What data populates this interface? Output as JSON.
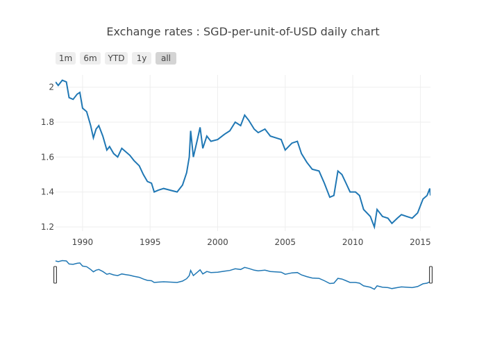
{
  "chart_data": {
    "type": "line",
    "title": "Exchange rates : SGD-per-unit-of-USD daily chart",
    "xlabel": "",
    "ylabel": "",
    "xlim": [
      1988.0,
      2015.75
    ],
    "ylim": [
      1.176,
      2.07
    ],
    "grid": true,
    "x_ticks": [
      "1990",
      "1995",
      "2000",
      "2005",
      "2010",
      "2015"
    ],
    "y_ticks": [
      "1.2",
      "1.4",
      "1.6",
      "1.8",
      "2"
    ],
    "range_buttons": [
      "1m",
      "6m",
      "YTD",
      "1y",
      "all"
    ],
    "active_button": "all",
    "series": [
      {
        "name": "SGD per USD",
        "color": "#1f77b4",
        "x": [
          1988.0,
          1988.2,
          1988.5,
          1988.8,
          1989.0,
          1989.3,
          1989.6,
          1989.8,
          1990.0,
          1990.3,
          1990.6,
          1990.8,
          1991.0,
          1991.2,
          1991.5,
          1991.8,
          1992.0,
          1992.3,
          1992.6,
          1992.9,
          1993.2,
          1993.5,
          1993.8,
          1994.2,
          1994.5,
          1994.8,
          1995.1,
          1995.3,
          1995.6,
          1996.0,
          1996.5,
          1997.0,
          1997.4,
          1997.7,
          1997.9,
          1998.0,
          1998.2,
          1998.5,
          1998.7,
          1998.9,
          1999.2,
          1999.5,
          2000.0,
          2000.5,
          2000.9,
          2001.3,
          2001.7,
          2002.0,
          2002.3,
          2002.7,
          2003.0,
          2003.5,
          2003.9,
          2004.3,
          2004.7,
          2005.0,
          2005.5,
          2005.9,
          2006.2,
          2006.6,
          2007.0,
          2007.5,
          2007.9,
          2008.3,
          2008.6,
          2008.9,
          2009.2,
          2009.5,
          2009.8,
          2010.2,
          2010.5,
          2010.8,
          2011.3,
          2011.6,
          2011.8,
          2012.2,
          2012.6,
          2012.9,
          2013.3,
          2013.6,
          2014.0,
          2014.4,
          2014.8,
          2015.2,
          2015.5,
          2015.7,
          2015.75
        ],
        "y": [
          2.03,
          2.01,
          2.04,
          2.03,
          1.94,
          1.93,
          1.96,
          1.97,
          1.88,
          1.86,
          1.78,
          1.71,
          1.76,
          1.78,
          1.72,
          1.64,
          1.66,
          1.62,
          1.6,
          1.65,
          1.63,
          1.61,
          1.58,
          1.55,
          1.5,
          1.46,
          1.45,
          1.4,
          1.41,
          1.42,
          1.41,
          1.4,
          1.44,
          1.51,
          1.6,
          1.75,
          1.6,
          1.7,
          1.77,
          1.65,
          1.72,
          1.69,
          1.7,
          1.73,
          1.75,
          1.8,
          1.78,
          1.84,
          1.81,
          1.76,
          1.74,
          1.76,
          1.72,
          1.71,
          1.7,
          1.64,
          1.68,
          1.69,
          1.62,
          1.57,
          1.53,
          1.52,
          1.45,
          1.37,
          1.38,
          1.52,
          1.5,
          1.45,
          1.4,
          1.4,
          1.38,
          1.3,
          1.26,
          1.2,
          1.3,
          1.26,
          1.25,
          1.22,
          1.25,
          1.27,
          1.26,
          1.25,
          1.28,
          1.36,
          1.38,
          1.42,
          1.38
        ]
      }
    ]
  }
}
